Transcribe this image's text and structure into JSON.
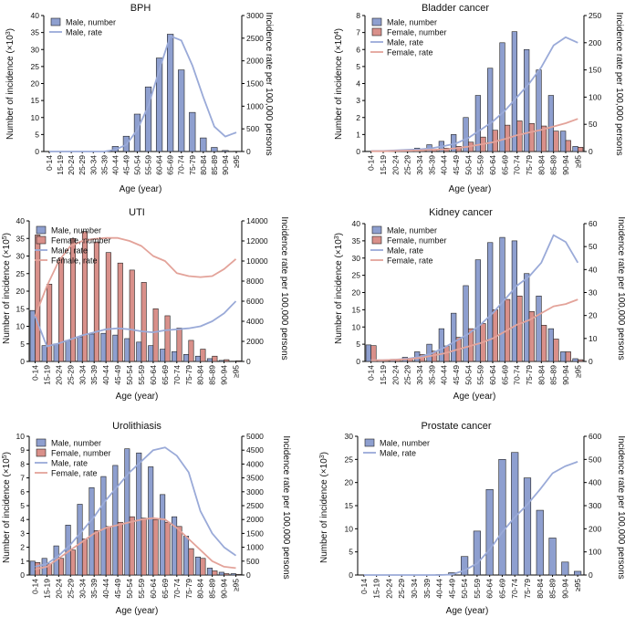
{
  "axis_labels": {
    "age_groups": [
      "0-14",
      "15-19",
      "20-24",
      "25-29",
      "30-34",
      "35-39",
      "40-44",
      "45-49",
      "50-54",
      "55-59",
      "60-64",
      "65-69",
      "70-74",
      "75-79",
      "80-84",
      "85-89",
      "90-94",
      "≥95"
    ],
    "x_label": "Age (year)",
    "right_label": "Incidence rate per 100,000 persons",
    "left_label_prefix": "Number of incidence (×10",
    "left_label_suffix": ")"
  },
  "colors": {
    "male_bar": "#8e9fcf",
    "female_bar": "#d9908a",
    "male_line": "#9aaad8",
    "female_line": "#e3a39a",
    "bar_edge": "#222222"
  },
  "chart_data": [
    {
      "type": "bar",
      "title": "BPH",
      "exponent": "3",
      "xlabel": "Age (year)",
      "ylabel": "Number of incidence (×10³)",
      "ylabel_right": "Incidence rate per 100,000 persons",
      "ylim": [
        0,
        40
      ],
      "yticks": [
        0,
        5,
        10,
        15,
        20,
        25,
        30,
        35,
        40
      ],
      "ylim_right": [
        0,
        3000
      ],
      "yticks_right": [
        0,
        500,
        1000,
        1500,
        2000,
        2500,
        3000
      ],
      "legend": [
        "Male, number",
        "Male, rate"
      ],
      "series": [
        {
          "name": "Male, number",
          "kind": "bar",
          "sex": "male",
          "values": [
            0,
            0,
            0,
            0,
            0,
            0,
            1.5,
            4.5,
            11,
            19,
            27.5,
            34.5,
            24,
            11.5,
            4,
            1.2,
            0.3,
            0.1
          ]
        },
        {
          "name": "Male, rate",
          "kind": "line",
          "sex": "male",
          "values": [
            0,
            0,
            0,
            0,
            0,
            0,
            40,
            150,
            480,
            1000,
            1800,
            2550,
            2450,
            1900,
            1200,
            550,
            330,
            420
          ]
        }
      ]
    },
    {
      "type": "bar",
      "title": "Bladder cancer",
      "exponent": "4",
      "xlabel": "Age (year)",
      "ylabel": "Number of incidence (×10⁴)",
      "ylabel_right": "Incidence rate per 100,000 persons",
      "ylim": [
        0,
        8
      ],
      "yticks": [
        0,
        1,
        2,
        3,
        4,
        5,
        6,
        7,
        8
      ],
      "ylim_right": [
        0,
        250
      ],
      "yticks_right": [
        0,
        50,
        100,
        150,
        200,
        250
      ],
      "legend": [
        "Male, number",
        "Female, number",
        "Male, rate",
        "Female, rate"
      ],
      "series": [
        {
          "name": "Male, number",
          "kind": "bar",
          "sex": "male",
          "values": [
            0.02,
            0.02,
            0.06,
            0.1,
            0.2,
            0.4,
            0.6,
            1.0,
            2.0,
            3.3,
            4.9,
            6.4,
            7.05,
            6.0,
            4.8,
            3.3,
            1.2,
            0.3
          ]
        },
        {
          "name": "Female, number",
          "kind": "bar",
          "sex": "female",
          "values": [
            0.01,
            0.01,
            0.03,
            0.05,
            0.08,
            0.12,
            0.2,
            0.3,
            0.55,
            0.85,
            1.25,
            1.55,
            1.8,
            1.65,
            1.5,
            1.2,
            0.65,
            0.25
          ]
        },
        {
          "name": "Male, rate",
          "kind": "line",
          "sex": "male",
          "values": [
            1,
            1,
            2,
            3,
            4,
            6,
            10,
            15,
            25,
            40,
            55,
            75,
            100,
            125,
            155,
            195,
            210,
            200
          ]
        },
        {
          "name": "Female, rate",
          "kind": "line",
          "sex": "female",
          "values": [
            0.5,
            0.5,
            1,
            1.5,
            2,
            3,
            4,
            6,
            9,
            13,
            17,
            23,
            30,
            35,
            40,
            46,
            52,
            60
          ]
        }
      ]
    },
    {
      "type": "bar",
      "title": "UTI",
      "exponent": "5",
      "xlabel": "Age (year)",
      "ylabel": "Number of incidence (×10⁵)",
      "ylabel_right": "Incidence rate per 100,000 persons",
      "ylim": [
        0,
        40
      ],
      "yticks": [
        0,
        5,
        10,
        15,
        20,
        25,
        30,
        35,
        40
      ],
      "ylim_right": [
        0,
        14000
      ],
      "yticks_right": [
        0,
        2000,
        4000,
        6000,
        8000,
        10000,
        12000,
        14000
      ],
      "legend": [
        "Male, number",
        "Female, number",
        "Male, rate",
        "Female, rate"
      ],
      "series": [
        {
          "name": "Male, number",
          "kind": "bar",
          "sex": "male",
          "values": [
            14.5,
            4.5,
            5,
            6,
            7,
            7.8,
            8,
            7.5,
            6.5,
            5.5,
            4.5,
            3.5,
            2.8,
            2,
            1.5,
            0.8,
            0.3,
            0.1
          ]
        },
        {
          "name": "Female, number",
          "kind": "bar",
          "sex": "female",
          "values": [
            36,
            22,
            29.5,
            35,
            37,
            34,
            31,
            28,
            26,
            22.5,
            15,
            13,
            9.5,
            6,
            3.5,
            1.5,
            0.5,
            0.2
          ]
        },
        {
          "name": "Male, rate",
          "kind": "line",
          "sex": "male",
          "values": [
            4500,
            1500,
            1800,
            2200,
            2600,
            2900,
            3200,
            3300,
            3200,
            3000,
            2900,
            3100,
            3200,
            3300,
            3500,
            4000,
            4800,
            6000
          ]
        },
        {
          "name": "Female, rate",
          "kind": "line",
          "sex": "female",
          "values": [
            4500,
            7500,
            10000,
            11500,
            12000,
            12200,
            12300,
            12300,
            12000,
            11500,
            10500,
            10000,
            8800,
            8500,
            8400,
            8500,
            9200,
            10200
          ]
        }
      ]
    },
    {
      "type": "bar",
      "title": "Kidney cancer",
      "exponent": "3",
      "xlabel": "Age (year)",
      "ylabel": "Number of incidence (×10³)",
      "ylabel_right": "Incidence rate per 100,000 persons",
      "ylim": [
        0,
        40
      ],
      "yticks": [
        0,
        5,
        10,
        15,
        20,
        25,
        30,
        35,
        40
      ],
      "ylim_right": [
        0,
        60
      ],
      "yticks_right": [
        0,
        10,
        20,
        30,
        40,
        50,
        60
      ],
      "legend": [
        "Male, number",
        "Female, number",
        "Male, rate",
        "Female, rate"
      ],
      "series": [
        {
          "name": "Male, number",
          "kind": "bar",
          "sex": "male",
          "values": [
            4.8,
            0.3,
            0.6,
            1.2,
            2.8,
            5,
            9.5,
            14,
            22,
            29.5,
            34.5,
            36,
            35,
            25.5,
            19,
            9.5,
            2.8,
            0.8
          ]
        },
        {
          "name": "Female, number",
          "kind": "bar",
          "sex": "female",
          "values": [
            4.6,
            0.3,
            0.5,
            0.9,
            2,
            3,
            4.5,
            7,
            9.5,
            11,
            15,
            18,
            19,
            14.5,
            10.5,
            6.5,
            2.8,
            0.5
          ]
        },
        {
          "name": "Male, rate",
          "kind": "line",
          "sex": "male",
          "values": [
            0.5,
            0.5,
            0.8,
            1.2,
            2,
            3.5,
            6,
            9,
            12,
            16,
            21,
            27,
            33,
            37,
            43,
            55,
            52,
            43
          ]
        },
        {
          "name": "Female, rate",
          "kind": "line",
          "sex": "female",
          "values": [
            0.5,
            0.5,
            0.7,
            1,
            1.5,
            2.5,
            3.5,
            5,
            6.5,
            8,
            10,
            13,
            16,
            18,
            21,
            24,
            25,
            27
          ]
        }
      ]
    },
    {
      "type": "bar",
      "title": "Urolithiasis",
      "exponent": "5",
      "xlabel": "Age (year)",
      "ylabel": "Number of incidence (×10⁵)",
      "ylabel_right": "Incidence rate per 100,000 persons",
      "ylim": [
        0,
        10
      ],
      "yticks": [
        0,
        1,
        2,
        3,
        4,
        5,
        6,
        7,
        8,
        9,
        10
      ],
      "ylim_right": [
        0,
        5000
      ],
      "yticks_right": [
        0,
        500,
        1000,
        1500,
        2000,
        2500,
        3000,
        3500,
        4000,
        4500,
        5000
      ],
      "legend": [
        "Male, number",
        "Female, number",
        "Male, rate",
        "Female, rate"
      ],
      "series": [
        {
          "name": "Male, number",
          "kind": "bar",
          "sex": "male",
          "values": [
            1,
            1.2,
            2.1,
            3.6,
            5.1,
            6.3,
            7.1,
            7.9,
            9.1,
            8.8,
            7.8,
            5.8,
            4.2,
            2.8,
            1.3,
            0.5,
            0.2,
            0.1
          ]
        },
        {
          "name": "Female, number",
          "kind": "bar",
          "sex": "female",
          "values": [
            0.9,
            0.8,
            1.2,
            1.8,
            2.6,
            3.2,
            3.5,
            3.8,
            4.2,
            4.1,
            4,
            3.8,
            3.5,
            1.9,
            1.2,
            0.3,
            0.1,
            0.05
          ]
        },
        {
          "name": "Male, rate",
          "kind": "line",
          "sex": "male",
          "values": [
            300,
            400,
            700,
            1100,
            1600,
            2100,
            2700,
            3200,
            3700,
            4100,
            4500,
            4600,
            4300,
            3700,
            2300,
            1500,
            1000,
            700
          ]
        },
        {
          "name": "Female, rate",
          "kind": "line",
          "sex": "female",
          "values": [
            200,
            300,
            600,
            900,
            1200,
            1500,
            1700,
            1800,
            1900,
            2000,
            2050,
            2000,
            1700,
            1300,
            900,
            500,
            300,
            250
          ]
        }
      ]
    },
    {
      "type": "bar",
      "title": "Prostate cancer",
      "exponent": "3",
      "xlabel": "Age (year)",
      "ylabel": "Number of incidence (×10³)",
      "ylabel_right": "Incidence rate per 100,000 persons",
      "ylim": [
        0,
        30
      ],
      "yticks": [
        0,
        5,
        10,
        15,
        20,
        25,
        30
      ],
      "ylim_right": [
        0,
        600
      ],
      "yticks_right": [
        0,
        100,
        200,
        300,
        400,
        500,
        600
      ],
      "legend": [
        "Male, number",
        "Male, rate"
      ],
      "series": [
        {
          "name": "Male, number",
          "kind": "bar",
          "sex": "male",
          "values": [
            0,
            0,
            0,
            0,
            0,
            0,
            0.1,
            0.5,
            4,
            9.5,
            18.5,
            25,
            26.5,
            21,
            14,
            8,
            2.8,
            0.8
          ]
        },
        {
          "name": "Male, rate",
          "kind": "line",
          "sex": "male",
          "values": [
            0,
            0,
            0,
            0,
            0,
            0,
            0,
            2,
            20,
            50,
            110,
            185,
            250,
            305,
            370,
            440,
            470,
            490
          ]
        }
      ]
    }
  ]
}
